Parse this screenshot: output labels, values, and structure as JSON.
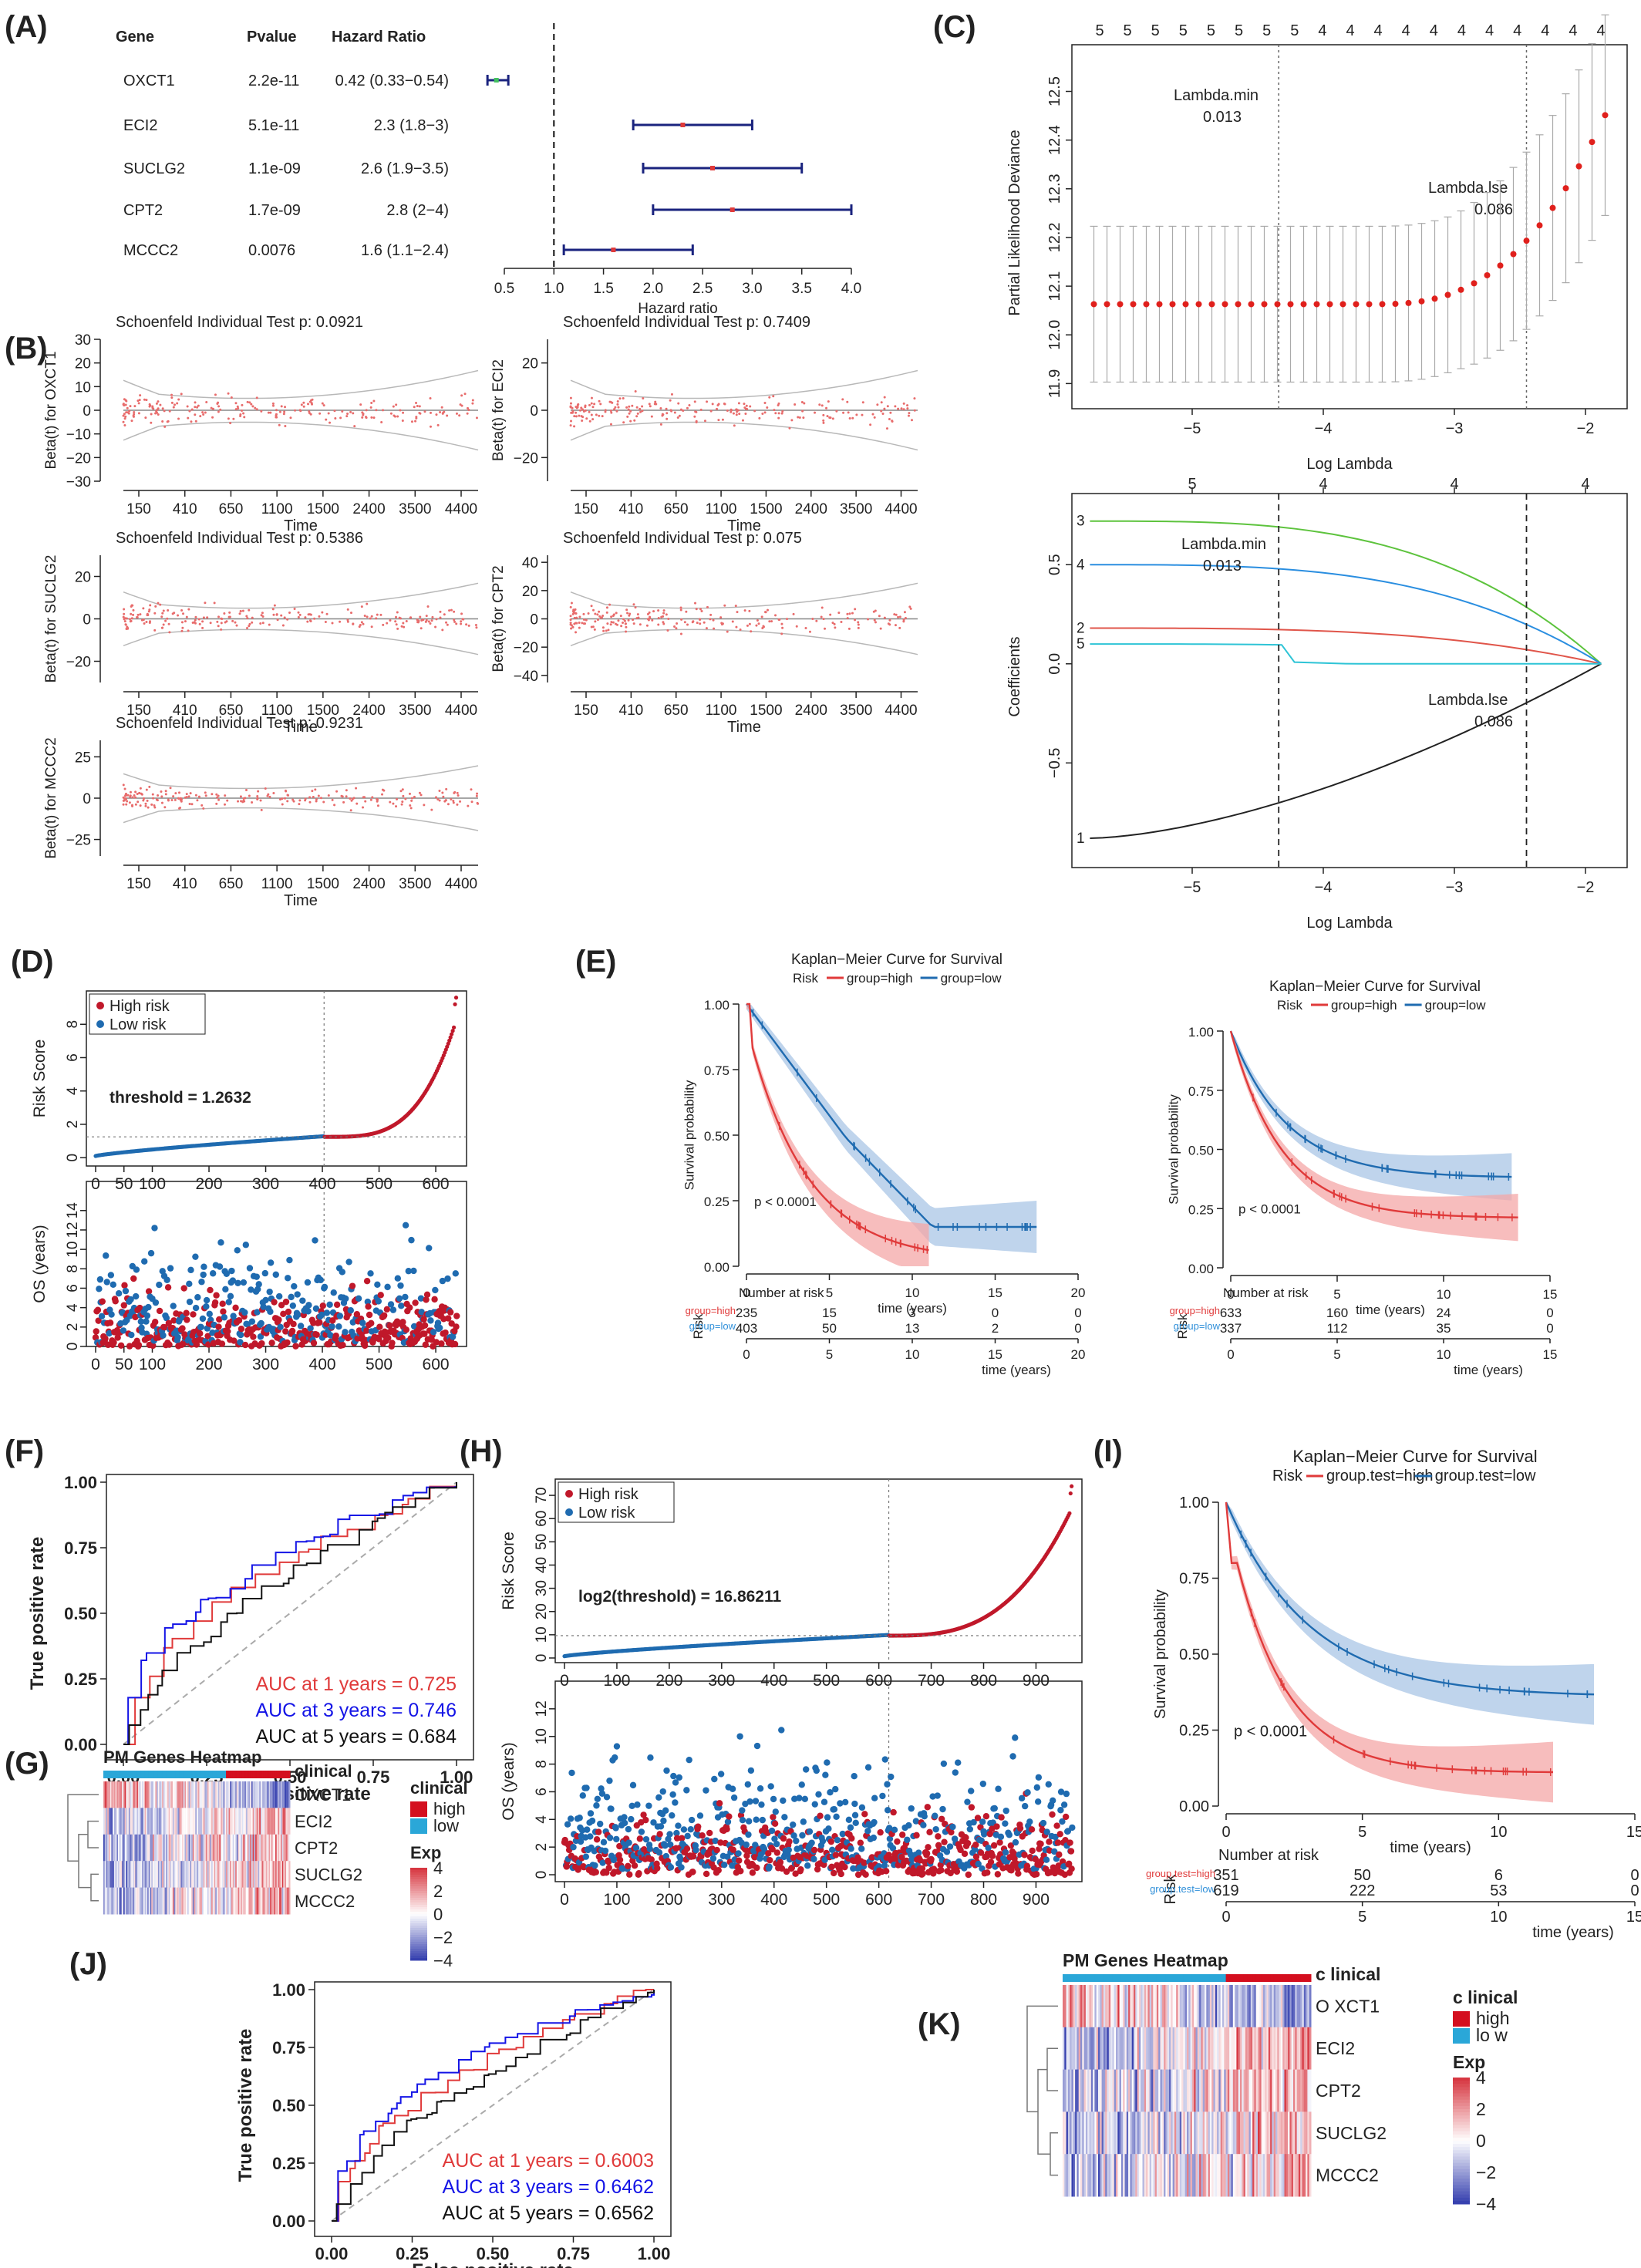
{
  "panels": {
    "A": "(A)",
    "B": "(B)",
    "C": "(C)",
    "D": "(D)",
    "E": "(E)",
    "F": "(F)",
    "G": "(G)",
    "H": "(H)",
    "I": "(I)",
    "J": "(J)",
    "K": "(K)"
  },
  "colors": {
    "red": "#e03a3a",
    "darkred": "#c0182a",
    "blue": "#1f6bb0",
    "lightblue": "#2f8fd9",
    "navy": "#1a237e",
    "ci_red": "#f4a7a7",
    "ci_blue": "#a9c6e6",
    "grey": "#bdbdbd",
    "heat_high": "#d62d3a",
    "heat_low": "#3949ab",
    "clin_high": "#d40f1f",
    "clin_low": "#2aa7d8"
  },
  "chart_data": [
    {
      "id": "A",
      "type": "forest",
      "headers": [
        "Gene",
        "Pvalue",
        "Hazard Ratio"
      ],
      "rows": [
        {
          "gene": "OXCT1",
          "pvalue": "2.2e-11",
          "hr_text": "0.42 (0.33−0.54)",
          "hr": 0.42,
          "low": 0.33,
          "high": 0.54
        },
        {
          "gene": "ECI2",
          "pvalue": "5.1e-11",
          "hr_text": "2.3 (1.8−3)",
          "hr": 2.3,
          "low": 1.8,
          "high": 3.0
        },
        {
          "gene": "SUCLG2",
          "pvalue": "1.1e-09",
          "hr_text": "2.6 (1.9−3.5)",
          "hr": 2.6,
          "low": 1.9,
          "high": 3.5
        },
        {
          "gene": "CPT2",
          "pvalue": "1.7e-09",
          "hr_text": "2.8 (2−4)",
          "hr": 2.8,
          "low": 2.0,
          "high": 4.0
        },
        {
          "gene": "MCCC2",
          "pvalue": "0.0076",
          "hr_text": "1.6 (1.1−2.4)",
          "hr": 1.6,
          "low": 1.1,
          "high": 2.4
        }
      ],
      "xticks": [
        "0.5",
        "1.0",
        "1.5",
        "2.0",
        "2.5",
        "3.0",
        "3.5",
        "4.0"
      ],
      "xlabel": "Hazard ratio",
      "xlim": [
        0.5,
        4.0
      ],
      "ref": 1.0
    },
    {
      "id": "B",
      "type": "scatter",
      "plots": [
        {
          "title": "Schoenfeld Individual Test p: 0.0921",
          "ylabel": "Beta(t) for OXCT1",
          "yticks": [
            "30",
            "20",
            "10",
            "0",
            "−10",
            "−20",
            "−30"
          ],
          "ylim": [
            -30,
            30
          ]
        },
        {
          "title": "Schoenfeld Individual Test p: 0.7409",
          "ylabel": "Beta(t) for ECI2",
          "yticks": [
            "20",
            "0",
            "−20"
          ],
          "ylim": [
            -30,
            30
          ]
        },
        {
          "title": "Schoenfeld Individual Test p: 0.5386",
          "ylabel": "Beta(t) for SUCLG2",
          "yticks": [
            "20",
            "0",
            "−20"
          ],
          "ylim": [
            -30,
            30
          ]
        },
        {
          "title": "Schoenfeld Individual Test p: 0.075",
          "ylabel": "Beta(t) for CPT2",
          "yticks": [
            "40",
            "20",
            "0",
            "−20",
            "−40"
          ],
          "ylim": [
            -45,
            45
          ]
        },
        {
          "title": "Schoenfeld Individual Test p: 0.9231",
          "ylabel": "Beta(t) for MCCC2",
          "yticks": [
            "25",
            "0",
            "−25"
          ],
          "ylim": [
            -35,
            35
          ]
        }
      ],
      "xticks": [
        "150",
        "410",
        "650",
        "1100",
        "1500",
        "2400",
        "3500",
        "4400"
      ],
      "xlabel": "Time"
    },
    {
      "id": "C1",
      "type": "line",
      "xlabel": "Log Lambda",
      "ylabel": "Partial Likelihood Deviance",
      "xticks": [
        "−5",
        "−4",
        "−3",
        "−2"
      ],
      "xlim": [
        -5.8,
        -1.8
      ],
      "yticks": [
        "11.9",
        "12.0",
        "12.1",
        "12.2",
        "12.3",
        "12.4",
        "12.5"
      ],
      "ylim": [
        11.88,
        12.58
      ],
      "top_ticks": [
        "5",
        "5",
        "5",
        "5",
        "5",
        "5",
        "5",
        "5",
        "4",
        "4",
        "4",
        "4",
        "4",
        "4",
        "4",
        "4",
        "4",
        "4",
        "4"
      ],
      "lambda_min_label": "Lambda.min",
      "lambda_min_value": "0.013",
      "log_lambda_min": -4.34,
      "lambda_1se_label": "Lambda.lse",
      "lambda_1se_value": "0.086",
      "log_lambda_1se": -2.45
    },
    {
      "id": "C2",
      "type": "line",
      "xlabel": "Log Lambda",
      "ylabel": "Coefficients",
      "xticks": [
        "−5",
        "−4",
        "−3",
        "−2"
      ],
      "xlim": [
        -5.8,
        -1.8
      ],
      "yticks": [
        "−0.5",
        "0.0",
        "0.5"
      ],
      "ylim": [
        -0.95,
        0.82
      ],
      "top_ticks": [
        "5",
        "4",
        "4",
        "4"
      ],
      "lambda_min_label": "Lambda.min",
      "lambda_min_value": "0.013",
      "lambda_1se_label": "Lambda.lse",
      "lambda_1se_value": "0.086",
      "series": [
        {
          "name": "1",
          "color": "#222222",
          "start": -0.88
        },
        {
          "name": "2",
          "color": "#e0554a",
          "start": 0.18
        },
        {
          "name": "3",
          "color": "#5dc33d",
          "start": 0.72
        },
        {
          "name": "4",
          "color": "#2a8ee0",
          "start": 0.5
        },
        {
          "name": "5",
          "color": "#2ec4d6",
          "start": 0.1
        }
      ]
    },
    {
      "id": "D",
      "type": "scatter",
      "legend": [
        "High risk",
        "Low risk"
      ],
      "threshold_label": "threshold = 1.2632",
      "risk_ylabel": "Risk Score",
      "risk_yticks": [
        "0",
        "2",
        "4",
        "6",
        "8"
      ],
      "risk_ylim": [
        -0.5,
        10
      ],
      "os_ylabel": "OS (years)",
      "os_yticks": [
        "0",
        "2",
        "4",
        "6",
        "8",
        "10",
        "12",
        "14"
      ],
      "os_ylim": [
        0,
        17
      ],
      "xticks": [
        "0",
        "50",
        "100",
        "200",
        "300",
        "400",
        "500",
        "600"
      ],
      "n": 638,
      "cut": 403
    },
    {
      "id": "E1",
      "type": "line",
      "title": "Kaplan−Meier Curve for Survival",
      "legend_title": "Risk",
      "legend": [
        "group=high",
        "group=low"
      ],
      "ylabel": "Survival probability",
      "xlabel": "time (years)",
      "yticks": [
        "1.00",
        "0.75",
        "0.50",
        "0.25",
        "0.00"
      ],
      "xticks": [
        "0",
        "5",
        "10",
        "15",
        "20"
      ],
      "xlim": [
        0,
        20
      ],
      "pvalue": "p < 0.0001",
      "risk_title": "Number at risk",
      "risk_ylabel": "Risk",
      "risk_groups": [
        "group=high",
        "group=low"
      ],
      "risk_high": [
        "235",
        "15",
        "3",
        "0",
        "0"
      ],
      "risk_low": [
        "403",
        "50",
        "13",
        "2",
        "0"
      ]
    },
    {
      "id": "E2",
      "type": "line",
      "title": "Kaplan−Meier Curve for Survival",
      "legend_title": "Risk",
      "legend": [
        "group=high",
        "group=low"
      ],
      "ylabel": "Survival probability",
      "xlabel": "time (years)",
      "yticks": [
        "1.00",
        "0.75",
        "0.50",
        "0.25",
        "0.00"
      ],
      "xticks": [
        "0",
        "5",
        "10",
        "15"
      ],
      "xlim": [
        0,
        15
      ],
      "pvalue": "p < 0.0001",
      "risk_title": "Number at risk",
      "risk_ylabel": "Risk",
      "risk_groups": [
        "group=high",
        "group=low"
      ],
      "risk_high": [
        "633",
        "160",
        "24",
        "0"
      ],
      "risk_low": [
        "337",
        "112",
        "35",
        "0"
      ]
    },
    {
      "id": "F",
      "type": "line",
      "xlabel": "False positive rate",
      "ylabel": "True positive rate",
      "ticks": [
        "0.00",
        "0.25",
        "0.50",
        "0.75",
        "1.00"
      ],
      "auc": [
        "AUC at 1 years = 0.725",
        "AUC at 3 years = 0.746",
        "AUC at 5 years = 0.684"
      ]
    },
    {
      "id": "G",
      "type": "heatmap",
      "title": "PM Genes Heatmap",
      "clinical_label": "clinical",
      "genes": [
        "OXCT1",
        "ECI2",
        "CPT2",
        "SUCLG2",
        "MCCC2"
      ],
      "legend_title": "clinical",
      "legend": [
        "high",
        "low"
      ],
      "exp_title": "Exp",
      "exp_ticks": [
        "4",
        "2",
        "0",
        "−2",
        "−4"
      ]
    },
    {
      "id": "H",
      "type": "scatter",
      "legend": [
        "High risk",
        "Low risk"
      ],
      "threshold_label": "log2(threshold) = 16.86211",
      "risk_ylabel": "Risk Score",
      "risk_yticks": [
        "0",
        "10",
        "20",
        "30",
        "40",
        "50",
        "60",
        "70"
      ],
      "risk_ylim": [
        -2,
        77
      ],
      "os_ylabel": "OS (years)",
      "os_yticks": [
        "0",
        "2",
        "4",
        "6",
        "8",
        "10",
        "12"
      ],
      "os_ylim": [
        -0.5,
        14
      ],
      "xticks": [
        "0",
        "100",
        "200",
        "300",
        "400",
        "500",
        "600",
        "700",
        "800",
        "900"
      ],
      "n": 970,
      "cut": 619
    },
    {
      "id": "I",
      "type": "line",
      "title": "Kaplan−Meier Curve for Survival",
      "legend_title": "Risk",
      "legend": [
        "group.test=high",
        "group.test=low"
      ],
      "ylabel": "Survival probability",
      "xlabel": "time (years)",
      "yticks": [
        "1.00",
        "0.75",
        "0.50",
        "0.25",
        "0.00"
      ],
      "xticks": [
        "0",
        "5",
        "10",
        "15"
      ],
      "xlim": [
        0,
        15
      ],
      "pvalue": "p < 0.0001",
      "risk_title": "Number at risk",
      "risk_ylabel": "Risk",
      "risk_groups": [
        "group.test=high",
        "group.test=low"
      ],
      "risk_high": [
        "351",
        "50",
        "6",
        "0"
      ],
      "risk_low": [
        "619",
        "222",
        "53",
        "0"
      ]
    },
    {
      "id": "J",
      "type": "line",
      "xlabel": "False positive rate",
      "ylabel": "True positive rate",
      "ticks": [
        "0.00",
        "0.25",
        "0.50",
        "0.75",
        "1.00"
      ],
      "auc": [
        "AUC at 1 years = 0.6003",
        "AUC at 3 years = 0.6462",
        "AUC at 5 years = 0.6562"
      ]
    },
    {
      "id": "K",
      "type": "heatmap",
      "title": "PM Genes Heatmap",
      "clinical_label": "c linical",
      "genes": [
        "O XCT1",
        "ECI2",
        "CPT2",
        "SUCLG2",
        "MCCC2"
      ],
      "legend_title": "c linical",
      "legend": [
        "high",
        "lo w"
      ],
      "exp_title": "Exp",
      "exp_ticks": [
        "4",
        "2",
        "0",
        "−2",
        "−4"
      ]
    }
  ]
}
